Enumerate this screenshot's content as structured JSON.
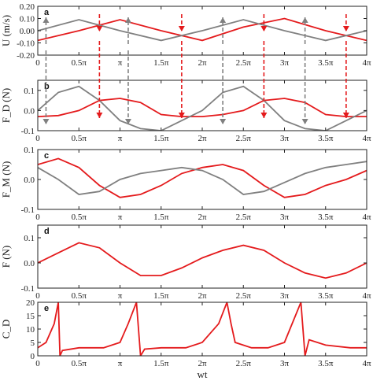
{
  "chart_data": [
    {
      "id": "a",
      "type": "line",
      "panel_label": "a",
      "ylabel": "U (m/s)",
      "ylim": [
        -0.2,
        0.2
      ],
      "yticks": [
        "0.20",
        "0.10",
        "0.00",
        "-0.10",
        "-0.20"
      ],
      "ytick_values": [
        0.2,
        0.1,
        0.0,
        -0.1,
        -0.2
      ],
      "series": [
        {
          "color": "#e41a1c",
          "amplitude": 0.09,
          "x": [
            0,
            0.5,
            1,
            1.5,
            2,
            2.5,
            3,
            3.5,
            4
          ],
          "y": [
            -0.08,
            0.0,
            0.09,
            0.0,
            -0.08,
            0.03,
            0.1,
            0.0,
            -0.08
          ]
        },
        {
          "color": "#808080",
          "amplitude": 0.085,
          "x": [
            0,
            0.5,
            1,
            1.5,
            2,
            2.5,
            3,
            3.5,
            4
          ],
          "y": [
            0.0,
            0.09,
            0.0,
            -0.08,
            0.0,
            0.09,
            0.0,
            -0.08,
            0.0
          ]
        }
      ]
    },
    {
      "id": "b",
      "type": "line",
      "panel_label": "b",
      "ylabel": "F_D (N)",
      "ylim": [
        -0.1,
        0.15
      ],
      "yticks": [
        "0.1",
        "0.0",
        "-0.1"
      ],
      "ytick_values": [
        0.1,
        0.0,
        -0.1
      ],
      "series": [
        {
          "color": "#e41a1c",
          "x": [
            0,
            0.25,
            0.5,
            0.75,
            1,
            1.25,
            1.5,
            1.75,
            2,
            2.25,
            2.5,
            2.75,
            3,
            3.25,
            3.5,
            3.75,
            4
          ],
          "y": [
            -0.03,
            -0.025,
            0.0,
            0.05,
            0.06,
            0.04,
            -0.02,
            -0.03,
            -0.03,
            -0.02,
            0.0,
            0.05,
            0.06,
            0.04,
            -0.02,
            -0.03,
            -0.03
          ]
        },
        {
          "color": "#808080",
          "x": [
            0,
            0.25,
            0.5,
            0.75,
            1,
            1.25,
            1.5,
            1.75,
            2,
            2.25,
            2.5,
            2.75,
            3,
            3.25,
            3.5,
            3.75,
            4
          ],
          "y": [
            0.0,
            0.09,
            0.12,
            0.05,
            -0.05,
            -0.09,
            -0.1,
            -0.05,
            0.0,
            0.09,
            0.12,
            0.05,
            -0.05,
            -0.09,
            -0.1,
            -0.05,
            0.0
          ]
        }
      ]
    },
    {
      "id": "c",
      "type": "line",
      "panel_label": "c",
      "ylabel": "F_M (N)",
      "ylim": [
        -0.1,
        0.1
      ],
      "yticks": [
        "0.1",
        "0.0",
        "-0.1"
      ],
      "ytick_values": [
        0.1,
        0.0,
        -0.1
      ],
      "series": [
        {
          "color": "#e41a1c",
          "x": [
            0,
            0.25,
            0.5,
            0.75,
            1,
            1.25,
            1.5,
            1.75,
            2,
            2.25,
            2.5,
            2.75,
            3,
            3.25,
            3.5,
            3.75,
            4
          ],
          "y": [
            0.05,
            0.07,
            0.04,
            -0.02,
            -0.06,
            -0.05,
            -0.02,
            0.02,
            0.04,
            0.05,
            0.03,
            -0.02,
            -0.06,
            -0.05,
            -0.02,
            0.0,
            0.03
          ]
        },
        {
          "color": "#808080",
          "x": [
            0,
            0.25,
            0.5,
            0.75,
            1,
            1.25,
            1.5,
            1.75,
            2,
            2.25,
            2.5,
            2.75,
            3,
            3.25,
            3.5,
            3.75,
            4
          ],
          "y": [
            0.04,
            0.0,
            -0.05,
            -0.04,
            0.0,
            0.02,
            0.03,
            0.04,
            0.03,
            0.0,
            -0.05,
            -0.04,
            -0.01,
            0.02,
            0.04,
            0.05,
            0.06
          ]
        }
      ]
    },
    {
      "id": "d",
      "type": "line",
      "panel_label": "d",
      "ylabel": "F (N)",
      "ylim": [
        -0.1,
        0.15
      ],
      "yticks": [
        "0.1",
        "0.0",
        "-0.1"
      ],
      "ytick_values": [
        0.1,
        0.0,
        -0.1
      ],
      "series": [
        {
          "color": "#e41a1c",
          "x": [
            0,
            0.25,
            0.5,
            0.75,
            1,
            1.25,
            1.5,
            1.75,
            2,
            2.25,
            2.5,
            2.75,
            3,
            3.25,
            3.5,
            3.75,
            4
          ],
          "y": [
            0.0,
            0.04,
            0.08,
            0.06,
            0.0,
            -0.05,
            -0.05,
            -0.02,
            0.02,
            0.05,
            0.07,
            0.05,
            0.0,
            -0.04,
            -0.06,
            -0.04,
            0.0
          ]
        }
      ]
    },
    {
      "id": "e",
      "type": "line",
      "panel_label": "e",
      "ylabel": "C_D",
      "xlabel": "wt",
      "ylim": [
        0,
        20
      ],
      "yticks": [
        "20",
        "15",
        "10",
        "5",
        "0"
      ],
      "ytick_values": [
        20,
        15,
        10,
        5,
        0
      ],
      "series": [
        {
          "color": "#e41a1c",
          "x": [
            0,
            0.1,
            0.2,
            0.25,
            0.27,
            0.3,
            0.5,
            0.8,
            1,
            1.1,
            1.2,
            1.25,
            1.3,
            1.5,
            1.8,
            2,
            2.2,
            2.3,
            2.35,
            2.4,
            2.6,
            2.8,
            3.0,
            3.2,
            3.25,
            3.3,
            3.5,
            3.8,
            4
          ],
          "y": [
            3,
            5,
            12,
            20,
            0,
            2,
            3,
            3,
            5,
            12,
            20,
            0,
            2.5,
            3,
            3,
            5,
            12,
            20,
            12,
            5,
            3,
            3,
            5,
            20,
            0,
            6,
            4,
            3,
            3
          ]
        }
      ]
    }
  ],
  "xaxis": {
    "xlim": [
      0,
      4
    ],
    "ticks": [
      "0",
      "0.5π",
      "π",
      "1.5π",
      "2π",
      "2.5π",
      "3π",
      "3.5π",
      "4π"
    ],
    "tick_values": [
      0,
      0.5,
      1,
      1.5,
      2,
      2.5,
      3,
      3.5,
      4
    ]
  },
  "arrows": {
    "red": [
      0.75,
      1.75,
      2.75,
      3.75
    ],
    "gray": [
      0.1,
      1.1,
      2.25,
      3.25
    ]
  }
}
